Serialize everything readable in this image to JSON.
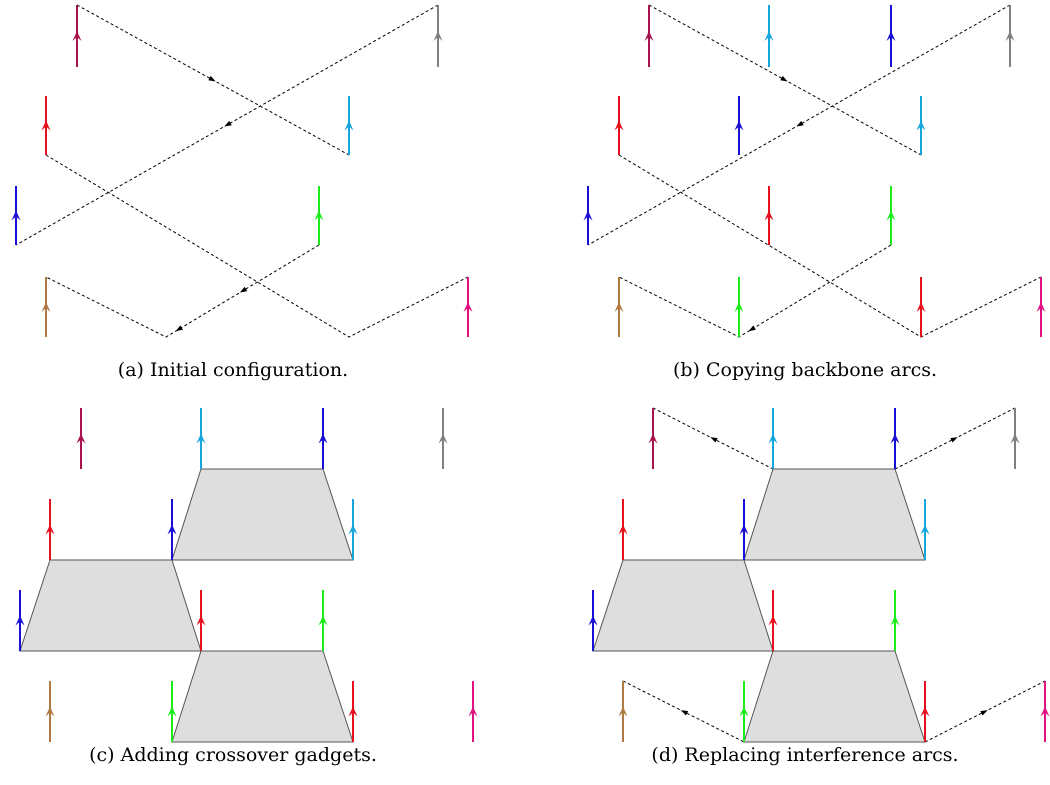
{
  "captions": {
    "a": "(a) Initial configuration.",
    "b": "(b) Copying backbone arcs.",
    "c": "(c) Adding crossover gadgets.",
    "d": "(d) Replacing interference arcs."
  },
  "colors": {
    "maroon": "#a8124e",
    "gray": "#808080",
    "red": "#e8101c",
    "cyan": "#15a6dc",
    "blue": "#1a0fd4",
    "green": "#1aec1a",
    "brown": "#b07a44",
    "magenta": "#e01282",
    "gadget_fill": "#dedede",
    "gadget_stroke": "#555555",
    "dashed": "#000000"
  }
}
